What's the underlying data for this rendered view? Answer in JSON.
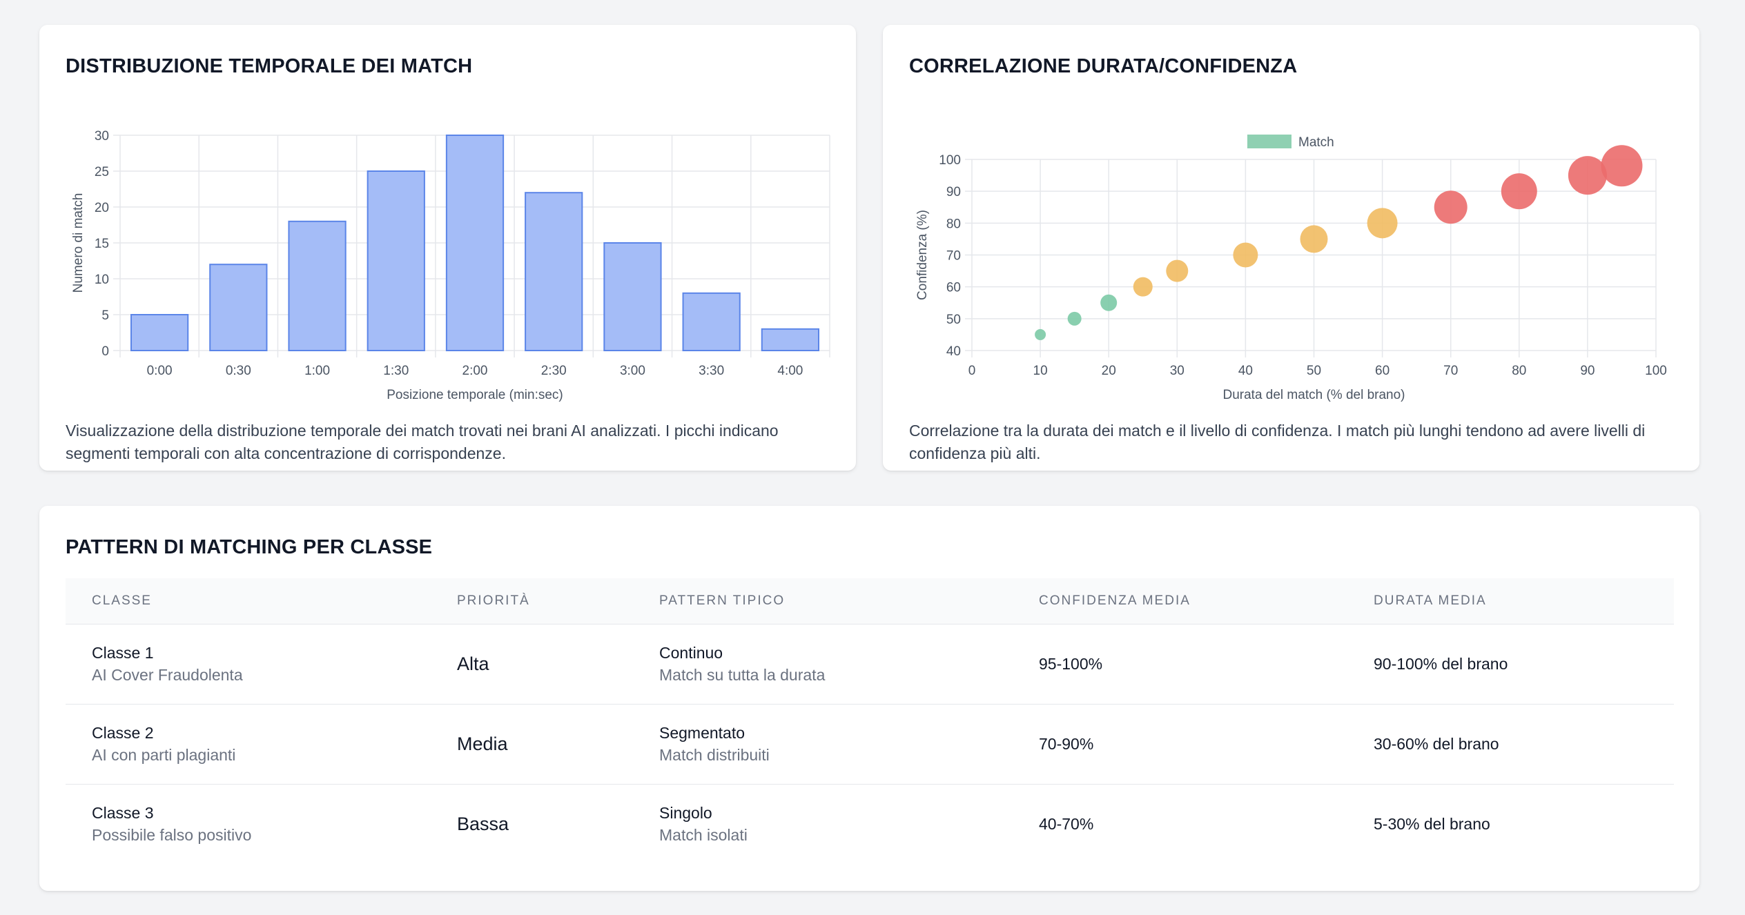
{
  "temporal_card": {
    "title": "DISTRIBUZIONE TEMPORALE DEI MATCH",
    "description": "Visualizzazione della distribuzione temporale dei match trovati nei brani AI analizzati. I picchi indicano segmenti temporali con alta concentrazione di corrispondenze."
  },
  "correlation_card": {
    "title": "CORRELAZIONE DURATA/CONFIDENZA",
    "description": "Correlazione tra la durata dei match e il livello di confidenza. I match più lunghi tendono ad avere livelli di confidenza più alti."
  },
  "chart_data": [
    {
      "type": "bar",
      "title": "",
      "xlabel": "Posizione temporale (min:sec)",
      "ylabel": "Numero di match",
      "categories": [
        "0:00",
        "0:30",
        "1:00",
        "1:30",
        "2:00",
        "2:30",
        "3:00",
        "3:30",
        "4:00"
      ],
      "values": [
        5,
        12,
        18,
        25,
        30,
        22,
        15,
        8,
        3
      ],
      "ylim": [
        0,
        30
      ],
      "yticks": [
        0,
        5,
        10,
        15,
        20,
        25,
        30
      ],
      "grid": true,
      "colors": {
        "fill": "#a4bcf7",
        "stroke": "#5b85e8"
      }
    },
    {
      "type": "scatter",
      "title": "",
      "xlabel": "Durata del match (% del brano)",
      "ylabel": "Confidenza (%)",
      "legend": {
        "label": "Match",
        "position": "top-center",
        "color": "#8fd0b2"
      },
      "xlim": [
        0,
        100
      ],
      "ylim": [
        40,
        100
      ],
      "xticks": [
        0,
        10,
        20,
        30,
        40,
        50,
        60,
        70,
        80,
        90,
        100
      ],
      "yticks": [
        40,
        50,
        60,
        70,
        80,
        90,
        100
      ],
      "grid": true,
      "points": [
        {
          "x": 10,
          "y": 45,
          "size": 1,
          "color": "#7ccaa6"
        },
        {
          "x": 15,
          "y": 50,
          "size": 2,
          "color": "#7ccaa6"
        },
        {
          "x": 20,
          "y": 55,
          "size": 3,
          "color": "#7ccaa6"
        },
        {
          "x": 25,
          "y": 60,
          "size": 4,
          "color": "#f1bb62"
        },
        {
          "x": 30,
          "y": 65,
          "size": 5,
          "color": "#f1bb62"
        },
        {
          "x": 40,
          "y": 70,
          "size": 6,
          "color": "#f1bb62"
        },
        {
          "x": 50,
          "y": 75,
          "size": 7,
          "color": "#f1bb62"
        },
        {
          "x": 60,
          "y": 80,
          "size": 8,
          "color": "#f1bb62"
        },
        {
          "x": 70,
          "y": 85,
          "size": 9,
          "color": "#eb6b6b"
        },
        {
          "x": 80,
          "y": 90,
          "size": 10,
          "color": "#eb6b6b"
        },
        {
          "x": 90,
          "y": 95,
          "size": 11,
          "color": "#eb6b6b"
        },
        {
          "x": 95,
          "y": 98,
          "size": 12,
          "color": "#eb6b6b"
        }
      ]
    }
  ],
  "pattern_card": {
    "title": "PATTERN DI MATCHING PER CLASSE",
    "headers": [
      "CLASSE",
      "PRIORITÀ",
      "PATTERN TIPICO",
      "CONFIDENZA MEDIA",
      "DURATA MEDIA"
    ],
    "rows": [
      {
        "class_name": "Classe 1",
        "class_desc": "AI Cover Fraudolenta",
        "priority": "Alta",
        "pattern": "Continuo",
        "pattern_desc": "Match su tutta la durata",
        "confidence": "95-100%",
        "duration": "90-100% del brano"
      },
      {
        "class_name": "Classe 2",
        "class_desc": "AI con parti plagianti",
        "priority": "Media",
        "pattern": "Segmentato",
        "pattern_desc": "Match distribuiti",
        "confidence": "70-90%",
        "duration": "30-60% del brano"
      },
      {
        "class_name": "Classe 3",
        "class_desc": "Possibile falso positivo",
        "priority": "Bassa",
        "pattern": "Singolo",
        "pattern_desc": "Match isolati",
        "confidence": "40-70%",
        "duration": "5-30% del brano"
      }
    ]
  }
}
